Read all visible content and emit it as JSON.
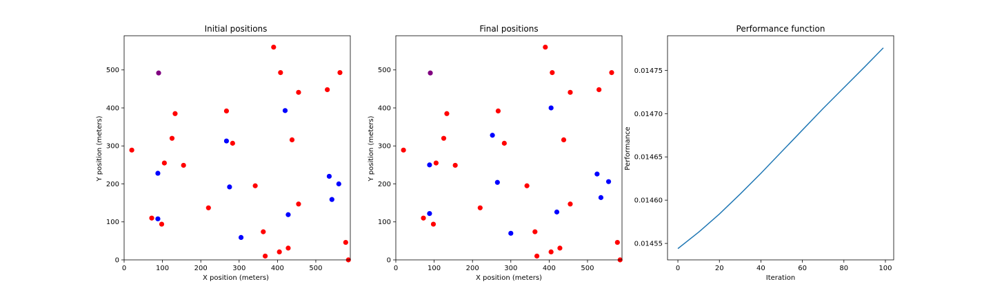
{
  "chart_data": [
    {
      "type": "scatter",
      "title": "Initial positions",
      "xlabel": "X position (meters)",
      "ylabel": "Y position (meters)",
      "xlim": [
        0,
        590
      ],
      "ylim": [
        0,
        590
      ],
      "xticks": [
        0,
        100,
        200,
        300,
        400,
        500
      ],
      "yticks": [
        0,
        100,
        200,
        300,
        400,
        500
      ],
      "grid": false,
      "series": [
        {
          "color": "#ff0000",
          "points": [
            [
              390,
              560
            ],
            [
              408,
              493
            ],
            [
              563,
              493
            ],
            [
              530,
              448
            ],
            [
              455,
              441
            ],
            [
              133,
              385
            ],
            [
              267,
              392
            ],
            [
              438,
              316
            ],
            [
              125,
              320
            ],
            [
              283,
              307
            ],
            [
              20,
              289
            ],
            [
              105,
              255
            ],
            [
              155,
              249
            ],
            [
              342,
              195
            ],
            [
              220,
              137
            ],
            [
              455,
              147
            ],
            [
              72,
              110
            ],
            [
              98,
              94
            ],
            [
              363,
              74
            ],
            [
              405,
              21
            ],
            [
              428,
              31
            ],
            [
              368,
              10
            ],
            [
              578,
              46
            ],
            [
              585,
              0
            ]
          ]
        },
        {
          "color": "#0000ff",
          "points": [
            [
              420,
              393
            ],
            [
              267,
              313
            ],
            [
              88,
              228
            ],
            [
              275,
              192
            ],
            [
              535,
              220
            ],
            [
              560,
              200
            ],
            [
              542,
              159
            ],
            [
              428,
              119
            ],
            [
              88,
              108
            ],
            [
              305,
              59
            ]
          ]
        },
        {
          "color": "#800080",
          "points": [
            [
              90,
              492
            ]
          ]
        }
      ]
    },
    {
      "type": "scatter",
      "title": "Final positions",
      "xlabel": "X position (meters)",
      "ylabel": "Y position (meters)",
      "xlim": [
        0,
        590
      ],
      "ylim": [
        0,
        590
      ],
      "xticks": [
        0,
        100,
        200,
        300,
        400,
        500
      ],
      "yticks": [
        0,
        100,
        200,
        300,
        400,
        500
      ],
      "grid": false,
      "series": [
        {
          "color": "#ff0000",
          "points": [
            [
              390,
              560
            ],
            [
              408,
              493
            ],
            [
              563,
              493
            ],
            [
              530,
              448
            ],
            [
              455,
              441
            ],
            [
              133,
              385
            ],
            [
              267,
              392
            ],
            [
              438,
              316
            ],
            [
              125,
              320
            ],
            [
              283,
              307
            ],
            [
              20,
              289
            ],
            [
              105,
              255
            ],
            [
              155,
              249
            ],
            [
              342,
              195
            ],
            [
              220,
              137
            ],
            [
              455,
              147
            ],
            [
              72,
              110
            ],
            [
              98,
              94
            ],
            [
              363,
              74
            ],
            [
              405,
              21
            ],
            [
              428,
              31
            ],
            [
              368,
              10
            ],
            [
              578,
              46
            ],
            [
              585,
              0
            ]
          ]
        },
        {
          "color": "#0000ff",
          "points": [
            [
              405,
              400
            ],
            [
              252,
              328
            ],
            [
              88,
              250
            ],
            [
              265,
              204
            ],
            [
              525,
              226
            ],
            [
              555,
              206
            ],
            [
              535,
              164
            ],
            [
              420,
              126
            ],
            [
              88,
              122
            ],
            [
              300,
              70
            ]
          ]
        },
        {
          "color": "#800080",
          "points": [
            [
              90,
              492
            ]
          ]
        }
      ]
    },
    {
      "type": "line",
      "title": "Performance function",
      "xlabel": "Iteration",
      "ylabel": "Performance",
      "xlim": [
        -5,
        104
      ],
      "ylim": [
        0.014531,
        0.01479
      ],
      "xticks": [
        0,
        20,
        40,
        60,
        80,
        100
      ],
      "yticks": [
        0.01455,
        0.0146,
        0.01465,
        0.0147,
        0.01475
      ],
      "ytick_labels": [
        "0.01455",
        "0.01460",
        "0.01465",
        "0.01470",
        "0.01475"
      ],
      "grid": false,
      "series": [
        {
          "color": "#1f77b4",
          "x": [
            0,
            10,
            20,
            30,
            40,
            50,
            60,
            70,
            80,
            90,
            99
          ],
          "y": [
            0.014544,
            0.014563,
            0.014584,
            0.014607,
            0.014631,
            0.014656,
            0.014681,
            0.014706,
            0.01473,
            0.014754,
            0.014776
          ]
        }
      ]
    }
  ]
}
